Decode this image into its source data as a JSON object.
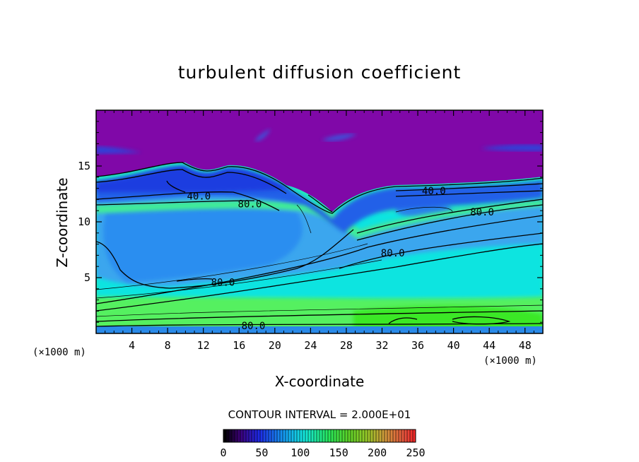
{
  "chart_data": {
    "type": "heatmap",
    "title": "turbulent diffusion coefficient",
    "xlabel": "X-coordinate",
    "ylabel": "Z-coordinate",
    "x_unit_label": "(×1000 m)",
    "xlim": [
      0,
      50
    ],
    "ylim": [
      0,
      20
    ],
    "x_ticks": [
      4,
      8,
      12,
      16,
      20,
      24,
      28,
      32,
      36,
      40,
      44,
      48
    ],
    "y_ticks": [
      5,
      10,
      15
    ],
    "contour_interval_label": "CONTOUR INTERVAL = 2.000E+01",
    "colorbar": {
      "min": 0,
      "max": 250,
      "ticks": [
        0,
        50,
        100,
        150,
        200,
        250
      ]
    },
    "contour_labels": [
      {
        "text": "40.0",
        "x": 11.5,
        "y": 12.3
      },
      {
        "text": "80.0",
        "x": 17.2,
        "y": 11.6
      },
      {
        "text": "40.0",
        "x": 37.8,
        "y": 12.8
      },
      {
        "text": "80.0",
        "x": 43.2,
        "y": 10.9
      },
      {
        "text": "80.0",
        "x": 33.2,
        "y": 7.2
      },
      {
        "text": "80.0",
        "x": 14.2,
        "y": 4.6
      },
      {
        "text": "80.0",
        "x": 17.6,
        "y": 0.7
      }
    ]
  }
}
